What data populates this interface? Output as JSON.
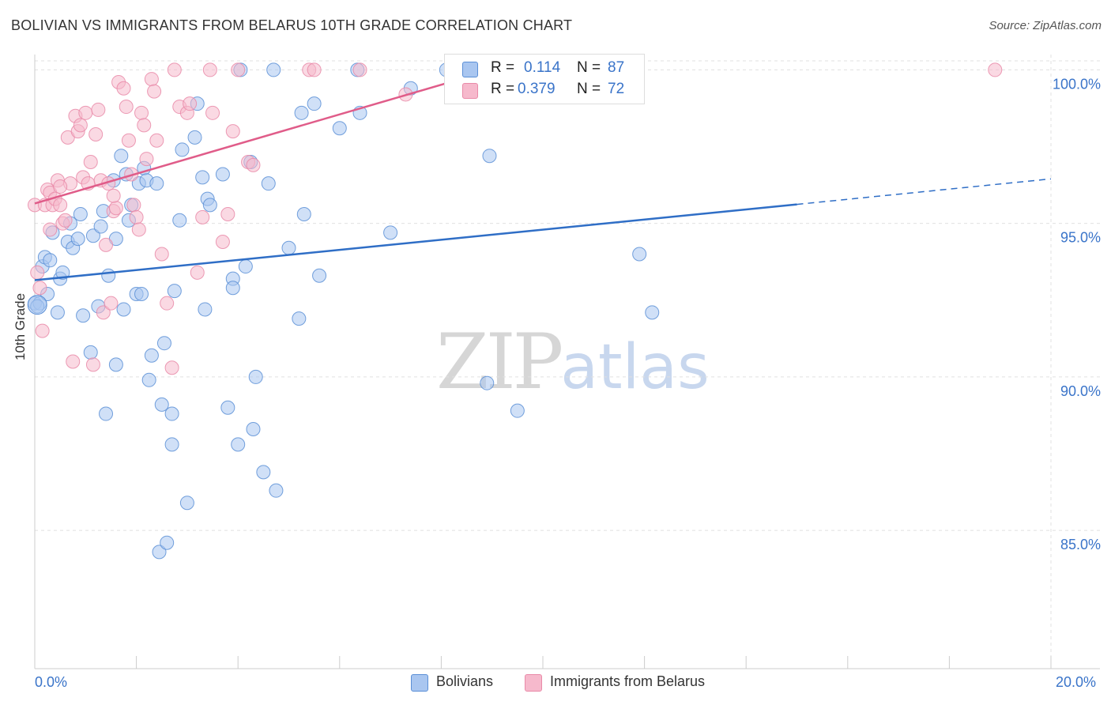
{
  "header": {
    "title": "BOLIVIAN VS IMMIGRANTS FROM BELARUS 10TH GRADE CORRELATION CHART",
    "source": "Source: ZipAtlas.com"
  },
  "watermark": {
    "zip": "ZIP",
    "atlas": "atlas"
  },
  "colors": {
    "blue_fill": "#a9c6f0",
    "blue_stroke": "#5b8fd6",
    "blue_line": "#2f6ec6",
    "pink_fill": "#f6b9cc",
    "pink_stroke": "#e98aa8",
    "pink_line": "#e05c89",
    "grid": "#e0e0e0",
    "axis_text": "#3a74c9"
  },
  "legend": {
    "rows": [
      {
        "r_label": "R =",
        "r_value": "0.114",
        "n_label": "N =",
        "n_value": "87",
        "color": "#a9c6f0",
        "border": "#5b8fd6"
      },
      {
        "r_label": "R =",
        "r_value": "0.379",
        "n_label": "N =",
        "n_value": "72",
        "color": "#f6b9cc",
        "border": "#e98aa8"
      }
    ]
  },
  "bottom_legend": [
    {
      "label": "Bolivians",
      "color": "#a9c6f0",
      "border": "#5b8fd6"
    },
    {
      "label": "Immigrants from Belarus",
      "color": "#f6b9cc",
      "border": "#e98aa8"
    }
  ],
  "chart_data": {
    "type": "scatter",
    "ylabel": "10th Grade",
    "xlim": [
      0,
      20
    ],
    "ylim": [
      80.5,
      100.5
    ],
    "y_ticks": [
      {
        "value": 100,
        "label": "100.0%"
      },
      {
        "value": 95,
        "label": "95.0%"
      },
      {
        "value": 90,
        "label": "90.0%"
      },
      {
        "value": 85,
        "label": "85.0%"
      }
    ],
    "x_tick_labels": {
      "min": "0.0%",
      "max": "20.0%"
    },
    "grid": true,
    "series": [
      {
        "name": "Bolivians",
        "trend": {
          "x_start": 0,
          "y_start": 93.15,
          "x_solid_end": 15.0,
          "y_solid_end": 95.62,
          "x_end": 20,
          "y_end": 96.45
        },
        "points": [
          [
            0.0,
            92.4
          ],
          [
            0.1,
            92.4
          ],
          [
            0.15,
            93.6
          ],
          [
            0.2,
            93.9
          ],
          [
            0.25,
            92.7
          ],
          [
            0.3,
            93.8
          ],
          [
            0.35,
            94.7
          ],
          [
            0.45,
            92.1
          ],
          [
            0.5,
            93.2
          ],
          [
            0.55,
            93.4
          ],
          [
            0.65,
            94.4
          ],
          [
            0.7,
            95.0
          ],
          [
            0.75,
            94.2
          ],
          [
            0.85,
            94.5
          ],
          [
            0.9,
            95.3
          ],
          [
            0.95,
            92.0
          ],
          [
            1.1,
            90.8
          ],
          [
            1.15,
            94.6
          ],
          [
            1.25,
            92.3
          ],
          [
            1.3,
            94.9
          ],
          [
            1.35,
            95.4
          ],
          [
            1.4,
            88.8
          ],
          [
            1.45,
            93.3
          ],
          [
            1.55,
            96.4
          ],
          [
            1.6,
            94.5
          ],
          [
            1.6,
            90.4
          ],
          [
            1.7,
            97.2
          ],
          [
            1.75,
            92.2
          ],
          [
            1.8,
            96.6
          ],
          [
            1.85,
            95.1
          ],
          [
            1.9,
            95.6
          ],
          [
            2.0,
            92.7
          ],
          [
            2.05,
            96.3
          ],
          [
            2.1,
            92.7
          ],
          [
            2.15,
            96.8
          ],
          [
            2.2,
            96.4
          ],
          [
            2.25,
            89.9
          ],
          [
            2.3,
            90.7
          ],
          [
            2.4,
            96.3
          ],
          [
            2.45,
            84.3
          ],
          [
            2.5,
            89.1
          ],
          [
            2.55,
            91.1
          ],
          [
            2.6,
            84.6
          ],
          [
            2.7,
            88.8
          ],
          [
            2.7,
            87.8
          ],
          [
            2.75,
            92.8
          ],
          [
            2.85,
            95.1
          ],
          [
            2.9,
            97.4
          ],
          [
            3.0,
            85.9
          ],
          [
            3.15,
            97.8
          ],
          [
            3.2,
            98.9
          ],
          [
            3.3,
            96.5
          ],
          [
            3.35,
            92.2
          ],
          [
            3.4,
            95.8
          ],
          [
            3.45,
            95.6
          ],
          [
            3.7,
            96.6
          ],
          [
            3.8,
            89.0
          ],
          [
            3.9,
            93.2
          ],
          [
            3.9,
            92.9
          ],
          [
            4.0,
            87.8
          ],
          [
            4.05,
            100.0
          ],
          [
            4.15,
            93.6
          ],
          [
            4.25,
            97.0
          ],
          [
            4.3,
            88.3
          ],
          [
            4.35,
            90.0
          ],
          [
            4.5,
            86.9
          ],
          [
            4.6,
            96.3
          ],
          [
            4.7,
            100.0
          ],
          [
            4.75,
            86.3
          ],
          [
            5.0,
            94.2
          ],
          [
            5.2,
            91.9
          ],
          [
            5.25,
            98.6
          ],
          [
            5.3,
            95.3
          ],
          [
            5.5,
            98.9
          ],
          [
            5.6,
            93.3
          ],
          [
            6.0,
            98.1
          ],
          [
            6.35,
            100.0
          ],
          [
            6.4,
            98.6
          ],
          [
            7.0,
            94.7
          ],
          [
            7.4,
            99.4
          ],
          [
            8.1,
            100.0
          ],
          [
            8.9,
            89.8
          ],
          [
            8.95,
            97.2
          ],
          [
            9.5,
            88.9
          ],
          [
            11.9,
            94.0
          ],
          [
            12.15,
            92.1
          ],
          [
            0.05,
            92.3
          ]
        ]
      },
      {
        "name": "Immigrants from Belarus",
        "trend": {
          "x_start": 0,
          "y_start": 95.65,
          "x_end": 9.0,
          "y_end": 100.0
        },
        "points": [
          [
            0.0,
            95.6
          ],
          [
            0.05,
            93.4
          ],
          [
            0.1,
            92.9
          ],
          [
            0.15,
            91.5
          ],
          [
            0.2,
            95.6
          ],
          [
            0.25,
            96.1
          ],
          [
            0.3,
            96.0
          ],
          [
            0.35,
            95.6
          ],
          [
            0.4,
            95.8
          ],
          [
            0.45,
            96.4
          ],
          [
            0.5,
            95.6
          ],
          [
            0.55,
            95.0
          ],
          [
            0.6,
            95.1
          ],
          [
            0.65,
            97.8
          ],
          [
            0.7,
            96.3
          ],
          [
            0.75,
            90.5
          ],
          [
            0.8,
            98.5
          ],
          [
            0.85,
            98.0
          ],
          [
            0.9,
            98.2
          ],
          [
            0.95,
            96.5
          ],
          [
            1.0,
            98.6
          ],
          [
            1.05,
            96.3
          ],
          [
            1.1,
            97.0
          ],
          [
            1.15,
            90.4
          ],
          [
            1.2,
            97.9
          ],
          [
            1.25,
            98.7
          ],
          [
            1.3,
            96.4
          ],
          [
            1.35,
            92.1
          ],
          [
            1.4,
            94.3
          ],
          [
            1.45,
            96.3
          ],
          [
            1.5,
            92.4
          ],
          [
            1.55,
            95.4
          ],
          [
            1.6,
            95.5
          ],
          [
            1.65,
            99.6
          ],
          [
            1.75,
            99.4
          ],
          [
            1.8,
            98.8
          ],
          [
            1.85,
            97.7
          ],
          [
            1.9,
            96.6
          ],
          [
            1.95,
            95.6
          ],
          [
            2.0,
            95.2
          ],
          [
            2.05,
            94.8
          ],
          [
            2.1,
            98.6
          ],
          [
            2.15,
            98.2
          ],
          [
            2.2,
            97.1
          ],
          [
            2.3,
            99.7
          ],
          [
            2.35,
            99.3
          ],
          [
            2.4,
            97.7
          ],
          [
            2.5,
            94.0
          ],
          [
            2.6,
            92.4
          ],
          [
            2.7,
            90.3
          ],
          [
            2.75,
            100.0
          ],
          [
            2.85,
            98.8
          ],
          [
            3.0,
            98.6
          ],
          [
            3.05,
            98.9
          ],
          [
            3.2,
            93.4
          ],
          [
            3.3,
            95.2
          ],
          [
            3.45,
            100.0
          ],
          [
            3.5,
            98.6
          ],
          [
            3.7,
            94.4
          ],
          [
            3.8,
            95.3
          ],
          [
            3.9,
            98.0
          ],
          [
            4.0,
            100.0
          ],
          [
            4.2,
            97.0
          ],
          [
            4.3,
            96.9
          ],
          [
            5.4,
            100.0
          ],
          [
            5.5,
            100.0
          ],
          [
            6.4,
            100.0
          ],
          [
            7.3,
            99.2
          ],
          [
            18.9,
            100.0
          ],
          [
            0.3,
            94.8
          ],
          [
            1.55,
            95.9
          ],
          [
            0.5,
            96.2
          ]
        ]
      }
    ]
  }
}
